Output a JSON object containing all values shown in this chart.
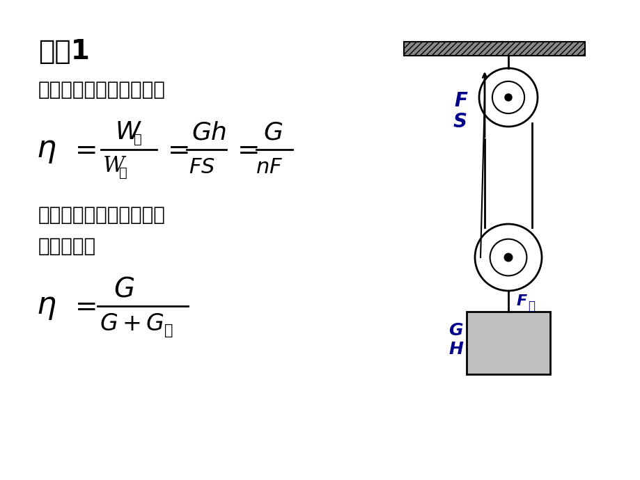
{
  "title": "模型1",
  "subtitle": "在空气中提升重物，有：",
  "note_line1": "若不计绳重及轴的摩擦，",
  "note_line2": "进一步有：",
  "bg_color": "#ffffff",
  "text_color": "#000000",
  "blue_color": "#00008B",
  "title_fontsize": 28,
  "body_fontsize": 20,
  "formula_fontsize": 26
}
